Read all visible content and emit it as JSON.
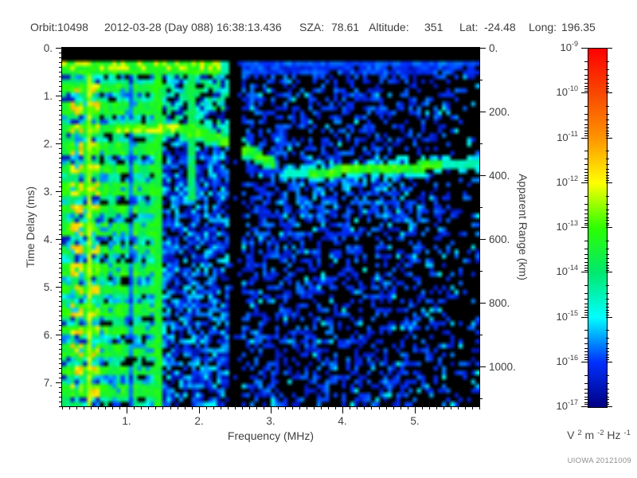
{
  "header": {
    "orbit_label": "Orbit:",
    "orbit_value": "10498",
    "datetime": "2012-03-28 (Day 088) 16:38:13.436",
    "sza_label": "SZA:",
    "sza_value": "78.61",
    "altitude_label": "Altitude:",
    "altitude_value": "351",
    "lat_label": "Lat:",
    "lat_value": "-24.48",
    "long_label": "Long:",
    "long_value": "196.35"
  },
  "footer": {
    "credit": "UIOWA 20121009"
  },
  "chart_data": {
    "type": "heatmap",
    "xlabel": "Frequency (MHz)",
    "ylabel_left": "Time Delay (ms)",
    "ylabel_right": "Apparent Range (km)",
    "x_range_mhz": [
      0.1,
      5.9
    ],
    "x_major_ticks": [
      {
        "v": 1,
        "label": "1."
      },
      {
        "v": 2,
        "label": "2."
      },
      {
        "v": 3,
        "label": "3."
      },
      {
        "v": 4,
        "label": "4."
      },
      {
        "v": 5,
        "label": "5."
      }
    ],
    "x_minor_step_mhz": 0.1,
    "y_range_ms": [
      0,
      7.5
    ],
    "y_major_ticks": [
      {
        "v": 0,
        "label": "0."
      },
      {
        "v": 1,
        "label": "1."
      },
      {
        "v": 2,
        "label": "2."
      },
      {
        "v": 3,
        "label": "3."
      },
      {
        "v": 4,
        "label": "4."
      },
      {
        "v": 5,
        "label": "5."
      },
      {
        "v": 6,
        "label": "6."
      },
      {
        "v": 7,
        "label": "7."
      }
    ],
    "y_minor_step_ms": 0.1,
    "y2_range_km": [
      0,
      1125
    ],
    "y2_major_ticks": [
      {
        "v": 0,
        "label": "0."
      },
      {
        "v": 200,
        "label": "200."
      },
      {
        "v": 400,
        "label": "400."
      },
      {
        "v": 600,
        "label": "600."
      },
      {
        "v": 800,
        "label": "800."
      },
      {
        "v": 1000,
        "label": "1000."
      }
    ],
    "y2_minor_step_km": 100,
    "colorbar": {
      "tick_mantissa": "10",
      "tick_exponents": [
        "-9",
        "-10",
        "-11",
        "-12",
        "-13",
        "-14",
        "-15",
        "-16",
        "-17"
      ],
      "unit_parts": [
        {
          "text": "V "
        },
        {
          "text": "2",
          "sup": true
        },
        {
          "text": " m "
        },
        {
          "text": "-2",
          "sup": true
        },
        {
          "text": " Hz "
        },
        {
          "text": "-1",
          "sup": true
        }
      ],
      "stops": [
        {
          "at": 0.0,
          "color": "#000082"
        },
        {
          "at": 0.125,
          "color": "#0030ff"
        },
        {
          "at": 0.25,
          "color": "#00ffff"
        },
        {
          "at": 0.375,
          "color": "#00e86e"
        },
        {
          "at": 0.5,
          "color": "#2cff00"
        },
        {
          "at": 0.625,
          "color": "#ffff00"
        },
        {
          "at": 0.75,
          "color": "#ff9400"
        },
        {
          "at": 0.875,
          "color": "#f84800"
        },
        {
          "at": 1.0,
          "color": "#ff0000"
        }
      ]
    },
    "features": {
      "seed": 20121009,
      "grid": {
        "cols": 100,
        "rows": 80
      },
      "blank_top_ms": 0.27,
      "top_band": {
        "t0": 0.28,
        "t1": 0.6,
        "green_f_max": 2.3,
        "cyan_f_max": 2.47,
        "faint_line_t": [
          0.3,
          0.42
        ]
      },
      "left_zone": {
        "f_max": 1.45,
        "row_period_ms": 0.42,
        "row_phase_ms": 0.33,
        "bright_frac": 0.55,
        "yellow_columns_mhz": [
          [
            0.24,
            0.37
          ],
          [
            0.5,
            0.63
          ]
        ],
        "dark_columns_mhz": [
          0.68,
          1.08,
          1.32
        ]
      },
      "harmonic_lines": [
        {
          "f": 0.5,
          "t_max": 7.5,
          "v": 0.52
        },
        {
          "f": 1.43,
          "t_max": 7.5,
          "v": 0.4
        },
        {
          "f": 1.9,
          "t_max": 3.2,
          "v": 0.34
        }
      ],
      "gap_mhz": [
        2.4,
        2.62
      ],
      "mid_zone": {
        "f_min": 1.47,
        "f_max": 2.4,
        "t_split": 1.9
      },
      "ionosphere_trace": {
        "points": [
          [
            0.85,
            1.7
          ],
          [
            1.5,
            1.7
          ],
          [
            1.95,
            1.74
          ],
          [
            2.2,
            1.88
          ],
          [
            2.45,
            2.02
          ],
          [
            2.7,
            2.16
          ],
          [
            2.95,
            2.35
          ],
          [
            3.08,
            2.45
          ]
        ],
        "half_width_ms": 0.1
      },
      "ground_trace": {
        "f0": 3.15,
        "f1": 5.9,
        "t0": 2.64,
        "t1": 2.42,
        "core_f": [
          3.5,
          5.35
        ],
        "half_width_ms": 0.1
      },
      "ground_scatter": {
        "f": [
          3.05,
          4.95
        ],
        "depth_ms": 1.7
      },
      "right_zone": {
        "f_min": 2.62,
        "base_density": 0.5,
        "density_slope": 0.055,
        "far_f": 5.5,
        "far_factor": 0.6
      }
    }
  }
}
